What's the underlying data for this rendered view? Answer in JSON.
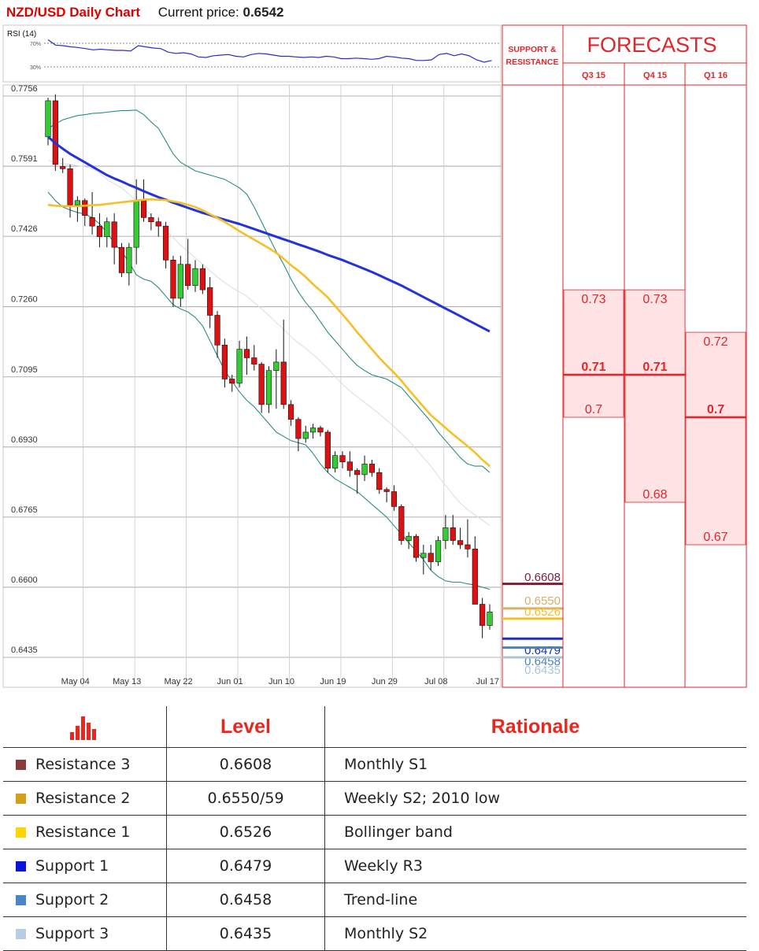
{
  "header": {
    "title": "NZD/USD Daily Chart",
    "price_label": "Current price:",
    "price_value": "0.6542"
  },
  "rsi": {
    "label": "RSI (14)",
    "upper": "70%",
    "lower": "30%",
    "values": [
      76,
      67,
      66,
      64,
      63,
      61,
      59,
      60,
      59,
      58,
      58,
      57,
      66,
      64,
      62,
      61,
      55,
      53,
      54,
      52,
      47,
      46,
      49,
      50,
      51,
      48,
      47,
      51,
      53,
      52,
      50,
      48,
      48,
      47,
      46,
      47,
      46,
      48,
      47,
      44,
      44,
      45,
      44,
      43,
      44,
      48,
      47,
      45,
      44,
      41,
      41,
      42,
      51,
      53,
      49,
      52,
      49,
      42,
      38,
      41
    ]
  },
  "chart_data": {
    "type": "candlestick",
    "title": "NZD/USD Daily Chart",
    "ylim": [
      0.639,
      0.7775
    ],
    "y_ticks": [
      "0.7756",
      "0.7591",
      "0.7426",
      "0.7260",
      "0.7095",
      "0.6930",
      "0.6765",
      "0.6600",
      "0.6435"
    ],
    "x_ticks": [
      "May 04",
      "May 13",
      "May 22",
      "Jun 01",
      "Jun 10",
      "Jun 19",
      "Jun 29",
      "Jul 08",
      "Jul 17"
    ],
    "x_tick_index": [
      2,
      9,
      16,
      23,
      30,
      37,
      44,
      51,
      58
    ],
    "candles": [
      [
        0.766,
        0.7752,
        0.764,
        0.7745
      ],
      [
        0.7745,
        0.776,
        0.758,
        0.7595
      ],
      [
        0.759,
        0.761,
        0.7575,
        0.7585
      ],
      [
        0.7585,
        0.7595,
        0.747,
        0.75
      ],
      [
        0.75,
        0.752,
        0.746,
        0.751
      ],
      [
        0.751,
        0.7515,
        0.745,
        0.7475
      ],
      [
        0.747,
        0.753,
        0.743,
        0.745
      ],
      [
        0.745,
        0.748,
        0.74,
        0.7425
      ],
      [
        0.7425,
        0.747,
        0.74,
        0.746
      ],
      [
        0.746,
        0.748,
        0.736,
        0.74
      ],
      [
        0.74,
        0.741,
        0.733,
        0.734
      ],
      [
        0.734,
        0.741,
        0.731,
        0.74
      ],
      [
        0.74,
        0.756,
        0.736,
        0.751
      ],
      [
        0.751,
        0.756,
        0.746,
        0.747
      ],
      [
        0.747,
        0.748,
        0.744,
        0.746
      ],
      [
        0.746,
        0.747,
        0.7425,
        0.745
      ],
      [
        0.745,
        0.746,
        0.735,
        0.737
      ],
      [
        0.737,
        0.738,
        0.726,
        0.728
      ],
      [
        0.728,
        0.738,
        0.726,
        0.736
      ],
      [
        0.736,
        0.742,
        0.73,
        0.731
      ],
      [
        0.731,
        0.737,
        0.7295,
        0.735
      ],
      [
        0.735,
        0.736,
        0.729,
        0.73
      ],
      [
        0.7305,
        0.733,
        0.721,
        0.724
      ],
      [
        0.724,
        0.725,
        0.714,
        0.717
      ],
      [
        0.717,
        0.7185,
        0.707,
        0.709
      ],
      [
        0.709,
        0.71,
        0.706,
        0.708
      ],
      [
        0.708,
        0.718,
        0.707,
        0.716
      ],
      [
        0.716,
        0.719,
        0.71,
        0.714
      ],
      [
        0.714,
        0.717,
        0.711,
        0.7125
      ],
      [
        0.7125,
        0.713,
        0.701,
        0.703
      ],
      [
        0.703,
        0.712,
        0.701,
        0.711
      ],
      [
        0.711,
        0.716,
        0.702,
        0.713
      ],
      [
        0.713,
        0.723,
        0.702,
        0.703
      ],
      [
        0.703,
        0.704,
        0.698,
        0.6995
      ],
      [
        0.6995,
        0.7,
        0.692,
        0.695
      ],
      [
        0.695,
        0.698,
        0.694,
        0.6965
      ],
      [
        0.6965,
        0.6985,
        0.695,
        0.6975
      ],
      [
        0.6975,
        0.698,
        0.6955,
        0.6965
      ],
      [
        0.6965,
        0.697,
        0.687,
        0.688
      ],
      [
        0.688,
        0.692,
        0.687,
        0.691
      ],
      [
        0.691,
        0.692,
        0.688,
        0.6895
      ],
      [
        0.6895,
        0.692,
        0.686,
        0.6875
      ],
      [
        0.6875,
        0.688,
        0.682,
        0.6865
      ],
      [
        0.6865,
        0.691,
        0.685,
        0.689
      ],
      [
        0.689,
        0.69,
        0.686,
        0.687
      ],
      [
        0.687,
        0.688,
        0.682,
        0.683
      ],
      [
        0.683,
        0.6835,
        0.68,
        0.6825
      ],
      [
        0.6825,
        0.684,
        0.678,
        0.679
      ],
      [
        0.679,
        0.6795,
        0.67,
        0.671
      ],
      [
        0.671,
        0.673,
        0.669,
        0.672
      ],
      [
        0.672,
        0.6725,
        0.666,
        0.667
      ],
      [
        0.667,
        0.67,
        0.663,
        0.668
      ],
      [
        0.668,
        0.67,
        0.664,
        0.666
      ],
      [
        0.666,
        0.672,
        0.665,
        0.671
      ],
      [
        0.671,
        0.677,
        0.669,
        0.674
      ],
      [
        0.674,
        0.677,
        0.67,
        0.671
      ],
      [
        0.671,
        0.674,
        0.669,
        0.67
      ],
      [
        0.67,
        0.676,
        0.667,
        0.669
      ],
      [
        0.669,
        0.672,
        0.656,
        0.656
      ],
      [
        0.656,
        0.6575,
        0.648,
        0.651
      ],
      [
        0.651,
        0.656,
        0.65,
        0.6542
      ]
    ],
    "series": [
      {
        "name": "",
        "color": "#2233dd",
        "values": [
          0.766,
          0.7645,
          0.7632,
          0.762,
          0.761,
          0.76,
          0.759,
          0.758,
          0.757,
          0.7562,
          0.7555,
          0.7547,
          0.754,
          0.7532,
          0.7525,
          0.7518,
          0.7512,
          0.7505,
          0.7499,
          0.7493,
          0.7487,
          0.7481,
          0.7476,
          0.747,
          0.7465,
          0.746,
          0.7455,
          0.7449,
          0.7443,
          0.7437,
          0.7431,
          0.7425,
          0.7419,
          0.7413,
          0.7407,
          0.7401,
          0.7395,
          0.7389,
          0.7382,
          0.7376,
          0.737,
          0.7363,
          0.7356,
          0.7349,
          0.7342,
          0.7334,
          0.7326,
          0.7318,
          0.731,
          0.7301,
          0.7292,
          0.7283,
          0.7274,
          0.7265,
          0.7256,
          0.7247,
          0.7238,
          0.7229,
          0.722,
          0.7211,
          0.7202
        ]
      },
      {
        "name": "",
        "color": "#f5c026",
        "values": [
          0.75,
          0.7498,
          0.7497,
          0.7497,
          0.7497,
          0.7498,
          0.7499,
          0.75,
          0.7502,
          0.7504,
          0.7506,
          0.7508,
          0.751,
          0.7512,
          0.7513,
          0.7512,
          0.7511,
          0.7508,
          0.7505,
          0.75,
          0.7495,
          0.7487,
          0.7478,
          0.7469,
          0.746,
          0.7449,
          0.7438,
          0.7428,
          0.7418,
          0.7408,
          0.7398,
          0.7387,
          0.7373,
          0.7358,
          0.7345,
          0.733,
          0.7313,
          0.7298,
          0.7282,
          0.7262,
          0.7242,
          0.7222,
          0.72,
          0.718,
          0.716,
          0.714,
          0.7122,
          0.7105,
          0.7086,
          0.7065,
          0.7045,
          0.7025,
          0.7005,
          0.699,
          0.6975,
          0.696,
          0.6946,
          0.6932,
          0.6917,
          0.69,
          0.6885
        ]
      },
      {
        "name": "",
        "color": "#2a8c86",
        "values": [
          0.768,
          0.769,
          0.77,
          0.7705,
          0.771,
          0.7712,
          0.7715,
          0.7716,
          0.7718,
          0.772,
          0.7722,
          0.7722,
          0.7723,
          0.7712,
          0.7695,
          0.768,
          0.765,
          0.762,
          0.76,
          0.759,
          0.758,
          0.7575,
          0.757,
          0.7565,
          0.756,
          0.755,
          0.754,
          0.7525,
          0.7495,
          0.746,
          0.7425,
          0.739,
          0.736,
          0.7325,
          0.7295,
          0.727,
          0.725,
          0.7225,
          0.72,
          0.718,
          0.716,
          0.714,
          0.7122,
          0.711,
          0.71,
          0.7095,
          0.709,
          0.708,
          0.707,
          0.705,
          0.703,
          0.701,
          0.699,
          0.6965,
          0.6945,
          0.6925,
          0.6905,
          0.689,
          0.6885,
          0.6885,
          0.687
        ]
      },
      {
        "name": "",
        "color": "#dcdcdc",
        "values": [
          0.7605,
          0.76,
          0.7597,
          0.7595,
          0.7592,
          0.759,
          0.7585,
          0.7575,
          0.756,
          0.755,
          0.754,
          0.7525,
          0.751,
          0.7492,
          0.7475,
          0.7458,
          0.744,
          0.7423,
          0.7405,
          0.739,
          0.7375,
          0.736,
          0.7345,
          0.733,
          0.7317,
          0.7305,
          0.7295,
          0.7285,
          0.727,
          0.7255,
          0.724,
          0.7223,
          0.7207,
          0.719,
          0.7175,
          0.7162,
          0.7148,
          0.7132,
          0.7115,
          0.7095,
          0.7078,
          0.7062,
          0.7048,
          0.7035,
          0.7022,
          0.7008,
          0.6993,
          0.6978,
          0.6962,
          0.6945,
          0.6925,
          0.6905,
          0.6885,
          0.6862,
          0.684,
          0.6818,
          0.6798,
          0.6783,
          0.677,
          0.6758,
          0.6745
        ]
      },
      {
        "name": "",
        "color": "#2a8c86",
        "values": [
          0.753,
          0.751,
          0.7495,
          0.7488,
          0.7482,
          0.7478,
          0.747,
          0.7455,
          0.7435,
          0.741,
          0.739,
          0.7365,
          0.7335,
          0.7325,
          0.732,
          0.7305,
          0.7285,
          0.7265,
          0.7255,
          0.7248,
          0.7235,
          0.7215,
          0.718,
          0.7145,
          0.711,
          0.7085,
          0.706,
          0.704,
          0.7025,
          0.7005,
          0.6985,
          0.6965,
          0.6955,
          0.6945,
          0.694,
          0.6935,
          0.6915,
          0.689,
          0.687,
          0.6855,
          0.6845,
          0.6835,
          0.6825,
          0.681,
          0.6795,
          0.678,
          0.6765,
          0.6745,
          0.6725,
          0.6705,
          0.6685,
          0.6665,
          0.664,
          0.6625,
          0.6615,
          0.6612,
          0.6612,
          0.6608,
          0.6605,
          0.66,
          0.6595
        ]
      }
    ],
    "sr_levels": [
      {
        "label": "0.6608",
        "value": 0.6608,
        "color": "#7a1e36"
      },
      {
        "label": "0.6550",
        "value": 0.655,
        "color": "#d6b06a"
      },
      {
        "label": "0.6526",
        "value": 0.6526,
        "color": "#f5c026"
      },
      {
        "label": "0.6479",
        "value": 0.6479,
        "color": "#1a2fbf"
      },
      {
        "label": "0.6458",
        "value": 0.6458,
        "color": "#4d7fb8"
      },
      {
        "label": "0.6435",
        "value": 0.6435,
        "color": "#a9c5d8"
      }
    ]
  },
  "forecasts": {
    "sr_header_line1": "SUPPORT &",
    "sr_header_line2": "RESISTANCE",
    "title": "FORECASTS",
    "columns": [
      {
        "label": "Q3 15",
        "high": "0.73",
        "mid": "0.71",
        "low": "0.7",
        "high_v": 0.73,
        "mid_v": 0.71,
        "low_v": 0.7
      },
      {
        "label": "Q4 15",
        "high": "0.73",
        "mid": "0.71",
        "low": "0.68",
        "high_v": 0.73,
        "mid_v": 0.71,
        "low_v": 0.68
      },
      {
        "label": "Q1 16",
        "high": "0.72",
        "mid": "0.7",
        "low": "0.67",
        "high_v": 0.72,
        "mid_v": 0.7,
        "low_v": 0.67
      }
    ]
  },
  "levels_table": {
    "header_level": "Level",
    "header_rationale": "Rationale",
    "rows": [
      {
        "name": "Resistance 3",
        "level": "0.6608",
        "rationale": "Monthly S1",
        "color": "#8b3a3a"
      },
      {
        "name": "Resistance 2",
        "level": "0.6550/59",
        "rationale": "Weekly S2; 2010 low",
        "color": "#d4a017"
      },
      {
        "name": "Resistance 1",
        "level": "0.6526",
        "rationale": "Bollinger band",
        "color": "#ffd400"
      },
      {
        "name": "Support 1",
        "level": "0.6479",
        "rationale": "Weekly R3",
        "color": "#0a14d6"
      },
      {
        "name": "Support 2",
        "level": "0.6458",
        "rationale": "Trend-line",
        "color": "#4a86c5"
      },
      {
        "name": "Support 3",
        "level": "0.6435",
        "rationale": "Monthly S2",
        "color": "#b8cce4"
      }
    ]
  }
}
